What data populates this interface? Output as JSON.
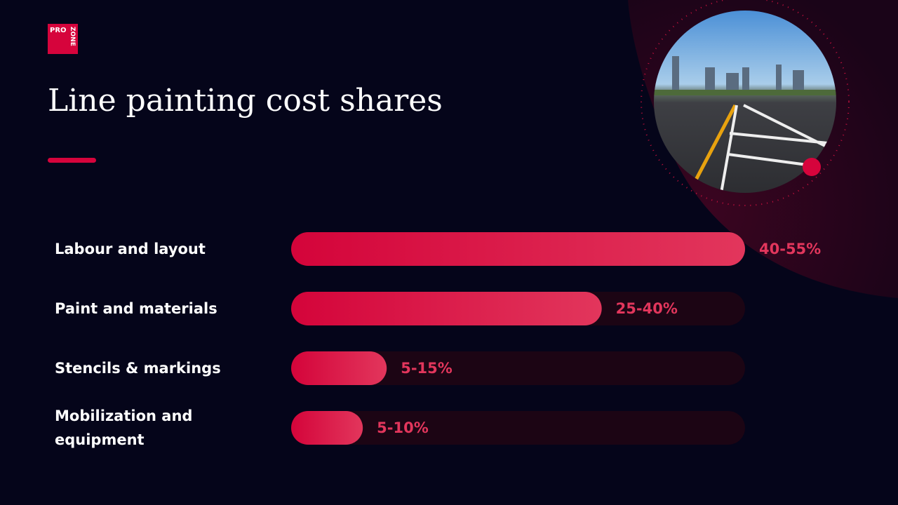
{
  "logo": {
    "line1": "PRO",
    "line2": "ZONE"
  },
  "chart_data": {
    "type": "range-bar",
    "title": "Line painting cost shares",
    "categories": [
      "Labour and layout",
      "Paint and materials",
      "Stencils & markings",
      "Mobilization and equipment"
    ],
    "values": [
      [
        40,
        55
      ],
      [
        25,
        40
      ],
      [
        5,
        15
      ],
      [
        5,
        10
      ]
    ],
    "value_labels": [
      "40-55%",
      "25-40%",
      "5-15%",
      "5-10%"
    ],
    "color": "#d6043c",
    "track_color": "#1c0514",
    "label_color": "#e2365c"
  }
}
